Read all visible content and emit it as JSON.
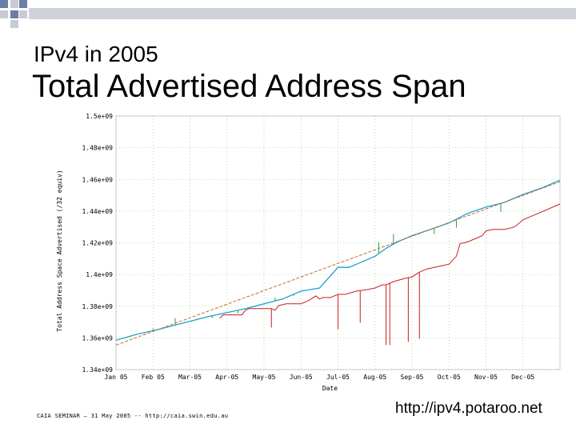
{
  "slide": {
    "subtitle": "IPv4 in 2005",
    "title": "Total Advertised Address Span",
    "footer_left": "CAIA SEMINAR – 31 May 2005 -- http://caia.swin.edu.au",
    "footer_right": "http://ipv4.potaroo.net"
  },
  "colors": {
    "decor_square": "#6b7ea6",
    "decor_bar": "#c8cbd3",
    "grid": "#6cc56c",
    "advertised_line": "#1e9fd0",
    "green_spikes": "#2e9d2e",
    "red_line": "#c81e1e",
    "trend_line": "#c86a2a"
  },
  "chart_data": {
    "type": "line",
    "title": "",
    "xlabel": "Date",
    "ylabel": "Total Address Space Advertised (/32 equiv)",
    "x_tick_labels": [
      "Jan 05",
      "Feb 05",
      "Mar-05",
      "Apr-05",
      "May-05",
      "Jun-05",
      "Jul-05",
      "Aug-05",
      "Sep-05",
      "Oct-05",
      "Nov-05",
      "Dec-05"
    ],
    "y_tick_labels": [
      "1.34e+09",
      "1.36e+09",
      "1.38e+09",
      "1.4e+09",
      "1.42e+09",
      "1.44e+09",
      "1.46e+09",
      "1.48e+09",
      "1.5e+09"
    ],
    "xlim": [
      0,
      12
    ],
    "ylim": [
      1340000000.0,
      1500000000.0
    ],
    "series": [
      {
        "name": "advertised",
        "x": [
          0,
          0.3,
          0.6,
          1,
          1.5,
          2,
          2.5,
          3,
          3.5,
          4,
          4.5,
          5,
          5.5,
          6,
          6.3,
          6.6,
          7,
          7.3,
          7.6,
          8,
          8.5,
          9,
          9.5,
          10,
          10.5,
          11,
          11.5,
          12
        ],
        "values": [
          1358500000.0,
          1360500000.0,
          1362500000.0,
          1364500000.0,
          1367500000.0,
          1370500000.0,
          1373500000.0,
          1376000000.0,
          1378500000.0,
          1381500000.0,
          1384500000.0,
          1389500000.0,
          1391500000.0,
          1404500000.0,
          1404500000.0,
          1407500000.0,
          1411500000.0,
          1416500000.0,
          1420500000.0,
          1424500000.0,
          1428500000.0,
          1432500000.0,
          1438500000.0,
          1442500000.0,
          1445500000.0,
          1450500000.0,
          1454500000.0,
          1459500000.0
        ]
      },
      {
        "name": "red",
        "x": [
          2.8,
          2.9,
          3,
          3.2,
          3.4,
          3.5,
          3.6,
          3.8,
          4,
          4.2,
          4.3,
          4.4,
          4.6,
          4.8,
          5,
          5.2,
          5.4,
          5.5,
          5.6,
          5.8,
          6,
          6.2,
          6.5,
          6.8,
          7,
          7.2,
          7.3,
          7.5,
          7.8,
          8,
          8.2,
          8.4,
          8.6,
          8.8,
          9,
          9.2,
          9.3,
          9.5,
          9.7,
          9.9,
          10,
          10.2,
          10.5,
          10.7,
          10.8,
          11,
          11.2,
          11.5,
          12
        ],
        "values": [
          1372500000.0,
          1374500000.0,
          1374500000.0,
          1374500000.0,
          1374500000.0,
          1377500000.0,
          1378500000.0,
          1378500000.0,
          1378500000.0,
          1378500000.0,
          1377500000.0,
          1380500000.0,
          1381500000.0,
          1381500000.0,
          1381500000.0,
          1383500000.0,
          1386500000.0,
          1384500000.0,
          1385500000.0,
          1385500000.0,
          1387500000.0,
          1387500000.0,
          1389500000.0,
          1390500000.0,
          1391500000.0,
          1393500000.0,
          1393500000.0,
          1395500000.0,
          1397500000.0,
          1398500000.0,
          1401500000.0,
          1403500000.0,
          1404500000.0,
          1405500000.0,
          1406500000.0,
          1411500000.0,
          1419500000.0,
          1420500000.0,
          1422500000.0,
          1424500000.0,
          1427500000.0,
          1428500000.0,
          1428500000.0,
          1429500000.0,
          1430500000.0,
          1434500000.0,
          1436500000.0,
          1439500000.0,
          1444500000.0
        ]
      },
      {
        "name": "trend",
        "x": [
          0,
          12
        ],
        "values": [
          1355500000.0,
          1458500000.0
        ]
      }
    ],
    "green_spikes": [
      {
        "x": 1.0,
        "top": 1366000000.0
      },
      {
        "x": 1.6,
        "top": 1372500000.0
      },
      {
        "x": 2.6,
        "top": 1372500000.0
      },
      {
        "x": 3.3,
        "top": 1375500000.0
      },
      {
        "x": 3.8,
        "top": 1380500000.0
      },
      {
        "x": 4.3,
        "top": 1385500000.0
      },
      {
        "x": 4.8,
        "top": 1386500000.0
      },
      {
        "x": 6.3,
        "top": 1404500000.0
      },
      {
        "x": 7.1,
        "top": 1420500000.0
      },
      {
        "x": 7.5,
        "top": 1425500000.0
      },
      {
        "x": 8.2,
        "top": 1425500000.0
      },
      {
        "x": 8.6,
        "top": 1425500000.0
      },
      {
        "x": 9.2,
        "top": 1429500000.0
      },
      {
        "x": 10.4,
        "top": 1439500000.0
      },
      {
        "x": 11.6,
        "top": 1455500000.0
      }
    ],
    "red_spikes": [
      {
        "x": 4.2,
        "bottom": 1366500000.0
      },
      {
        "x": 6.0,
        "bottom": 1365500000.0
      },
      {
        "x": 6.6,
        "bottom": 1369500000.0
      },
      {
        "x": 7.3,
        "bottom": 1355500000.0
      },
      {
        "x": 7.4,
        "bottom": 1355500000.0
      },
      {
        "x": 7.9,
        "bottom": 1357500000.0
      },
      {
        "x": 8.2,
        "bottom": 1359500000.0
      }
    ],
    "grid": true
  }
}
